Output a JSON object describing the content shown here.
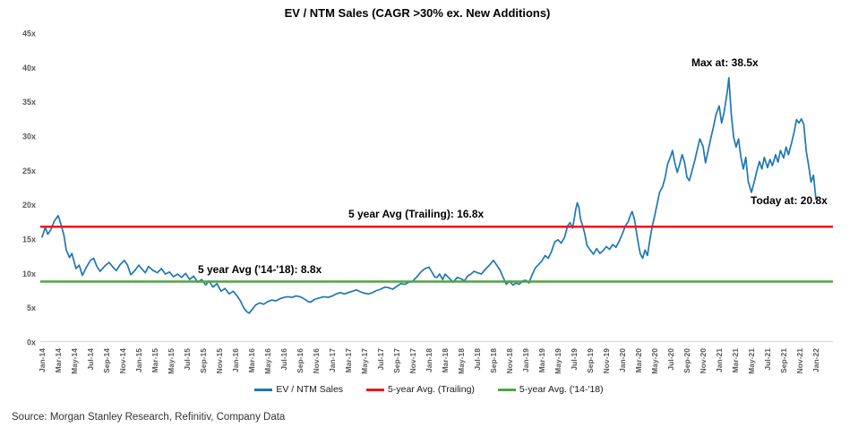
{
  "title": "EV / NTM Sales (CAGR >30% ex. New Additions)",
  "annotations": {
    "trailing_avg": "5 year Avg (Trailing): 16.8x",
    "early_avg": "5 year Avg ('14-'18): 8.8x",
    "max": "Max at: 38.5x",
    "today": "Today at: 20.8x"
  },
  "legend": [
    {
      "label": "EV / NTM Sales"
    },
    {
      "label": "5-year Avg. (Trailing)"
    },
    {
      "label": "5-year Avg. ('14-'18)"
    }
  ],
  "source": "Source: Morgan Stanley Research, Refinitiv, Company Data",
  "chart_data": {
    "type": "line",
    "title": "EV / NTM Sales (CAGR >30% ex. New Additions)",
    "y_axis": {
      "min": 0,
      "max": 45,
      "tick_step": 5,
      "ticks": [
        "0x",
        "5x",
        "10x",
        "15x",
        "20x",
        "25x",
        "30x",
        "35x",
        "40x",
        "45x"
      ],
      "grid": false
    },
    "x_axis": {
      "start": "Jan-14",
      "end": "Jan-22",
      "label_interval_months": 2,
      "labels": [
        "Jan-14",
        "Mar-14",
        "May-14",
        "Jul-14",
        "Sep-14",
        "Nov-14",
        "Jan-15",
        "Mar-15",
        "May-15",
        "Jul-15",
        "Sep-15",
        "Nov-15",
        "Jan-16",
        "Mar-16",
        "May-16",
        "Jul-16",
        "Sep-16",
        "Nov-16",
        "Jan-17",
        "Mar-17",
        "May-17",
        "Jul-17",
        "Sep-17",
        "Nov-17",
        "Jan-18",
        "Mar-18",
        "May-18",
        "Jul-18",
        "Sep-18",
        "Nov-18",
        "Jan-19",
        "Mar-19",
        "May-19",
        "Jul-19",
        "Sep-19",
        "Nov-19",
        "Jan-20",
        "Mar-20",
        "May-20",
        "Jul-20",
        "Sep-20",
        "Nov-20",
        "Jan-21",
        "Mar-21",
        "May-21",
        "Jul-21",
        "Sep-21",
        "Nov-21",
        "Jan-22"
      ]
    },
    "series": [
      {
        "name": "EV / NTM Sales",
        "kind": "line",
        "color": "#1f77b4",
        "max_value": 38.5,
        "max_at": "Feb-21",
        "last_value": 20.8,
        "last_at": "Jan-22",
        "points_format": "[months_since_Jan14, ev_ntm_sales_multiple]",
        "points": [
          [
            0,
            15.3
          ],
          [
            0.4,
            16.7
          ],
          [
            0.7,
            15.7
          ],
          [
            1.1,
            16.4
          ],
          [
            1.5,
            17.6
          ],
          [
            2,
            18.4
          ],
          [
            2.4,
            16.9
          ],
          [
            2.7,
            15.6
          ],
          [
            3,
            13.4
          ],
          [
            3.4,
            12.3
          ],
          [
            3.7,
            12.9
          ],
          [
            4.2,
            10.7
          ],
          [
            4.6,
            11.2
          ],
          [
            5,
            9.7
          ],
          [
            5.5,
            10.9
          ],
          [
            6,
            11.9
          ],
          [
            6.4,
            12.2
          ],
          [
            6.8,
            11.0
          ],
          [
            7.2,
            10.3
          ],
          [
            7.8,
            11.1
          ],
          [
            8.3,
            11.6
          ],
          [
            8.8,
            10.9
          ],
          [
            9.2,
            10.4
          ],
          [
            9.7,
            11.3
          ],
          [
            10.2,
            11.9
          ],
          [
            10.6,
            11.2
          ],
          [
            11,
            9.8
          ],
          [
            11.5,
            10.4
          ],
          [
            12,
            11.2
          ],
          [
            12.4,
            10.6
          ],
          [
            12.8,
            10.1
          ],
          [
            13.2,
            11.0
          ],
          [
            13.8,
            10.4
          ],
          [
            14.3,
            10.1
          ],
          [
            14.8,
            10.7
          ],
          [
            15.3,
            9.9
          ],
          [
            15.8,
            10.2
          ],
          [
            16.3,
            9.5
          ],
          [
            16.8,
            9.9
          ],
          [
            17.3,
            9.4
          ],
          [
            17.8,
            10.0
          ],
          [
            18.3,
            9.1
          ],
          [
            18.8,
            9.6
          ],
          [
            19.3,
            8.7
          ],
          [
            19.8,
            9.1
          ],
          [
            20.3,
            8.3
          ],
          [
            20.7,
            8.9
          ],
          [
            21.2,
            8.0
          ],
          [
            21.7,
            8.5
          ],
          [
            22.2,
            7.4
          ],
          [
            22.7,
            7.8
          ],
          [
            23.2,
            7.0
          ],
          [
            23.7,
            7.4
          ],
          [
            24.2,
            6.7
          ],
          [
            24.6,
            6.0
          ],
          [
            25,
            5.0
          ],
          [
            25.4,
            4.4
          ],
          [
            25.7,
            4.2
          ],
          [
            26.1,
            4.8
          ],
          [
            26.5,
            5.4
          ],
          [
            27,
            5.7
          ],
          [
            27.5,
            5.5
          ],
          [
            28,
            5.9
          ],
          [
            28.5,
            6.1
          ],
          [
            29,
            6.0
          ],
          [
            29.5,
            6.3
          ],
          [
            30,
            6.5
          ],
          [
            30.5,
            6.6
          ],
          [
            31,
            6.5
          ],
          [
            31.5,
            6.7
          ],
          [
            32,
            6.6
          ],
          [
            32.5,
            6.3
          ],
          [
            33,
            5.9
          ],
          [
            33.3,
            5.8
          ],
          [
            33.8,
            6.2
          ],
          [
            34.3,
            6.4
          ],
          [
            35,
            6.6
          ],
          [
            35.5,
            6.5
          ],
          [
            36,
            6.7
          ],
          [
            36.5,
            7.0
          ],
          [
            37,
            7.2
          ],
          [
            37.5,
            7.0
          ],
          [
            38,
            7.2
          ],
          [
            38.5,
            7.4
          ],
          [
            39,
            7.6
          ],
          [
            39.5,
            7.3
          ],
          [
            40,
            7.1
          ],
          [
            40.5,
            7.0
          ],
          [
            41,
            7.2
          ],
          [
            41.5,
            7.5
          ],
          [
            42,
            7.7
          ],
          [
            42.5,
            8.0
          ],
          [
            43,
            7.9
          ],
          [
            43.5,
            7.7
          ],
          [
            44,
            8.1
          ],
          [
            44.5,
            8.5
          ],
          [
            45,
            8.4
          ],
          [
            45.5,
            8.7
          ],
          [
            46,
            8.9
          ],
          [
            46.5,
            9.5
          ],
          [
            47,
            10.2
          ],
          [
            47.5,
            10.7
          ],
          [
            48,
            10.9
          ],
          [
            48.3,
            10.3
          ],
          [
            48.7,
            9.5
          ],
          [
            49,
            9.4
          ],
          [
            49.3,
            9.9
          ],
          [
            49.7,
            9.1
          ],
          [
            50,
            9.9
          ],
          [
            50.5,
            9.3
          ],
          [
            51,
            8.7
          ],
          [
            51.5,
            9.4
          ],
          [
            52,
            9.2
          ],
          [
            52.4,
            8.9
          ],
          [
            52.8,
            9.6
          ],
          [
            53.2,
            9.9
          ],
          [
            53.6,
            10.3
          ],
          [
            54,
            10.1
          ],
          [
            54.5,
            9.9
          ],
          [
            55,
            10.6
          ],
          [
            55.5,
            11.2
          ],
          [
            56,
            11.9
          ],
          [
            56.4,
            11.2
          ],
          [
            56.8,
            10.5
          ],
          [
            57.2,
            9.4
          ],
          [
            57.6,
            8.4
          ],
          [
            58,
            8.9
          ],
          [
            58.4,
            8.3
          ],
          [
            58.8,
            8.6
          ],
          [
            59.2,
            8.4
          ],
          [
            59.6,
            8.9
          ],
          [
            60,
            9.0
          ],
          [
            60.4,
            8.6
          ],
          [
            60.8,
            9.8
          ],
          [
            61.2,
            10.8
          ],
          [
            61.6,
            11.3
          ],
          [
            62,
            11.8
          ],
          [
            62.4,
            12.6
          ],
          [
            62.8,
            12.2
          ],
          [
            63.2,
            13.2
          ],
          [
            63.6,
            14.6
          ],
          [
            64,
            14.9
          ],
          [
            64.4,
            14.4
          ],
          [
            64.8,
            15.2
          ],
          [
            65.2,
            16.9
          ],
          [
            65.5,
            17.4
          ],
          [
            65.8,
            16.6
          ],
          [
            66,
            17.8
          ],
          [
            66.2,
            19.3
          ],
          [
            66.4,
            20.3
          ],
          [
            66.6,
            19.6
          ],
          [
            66.8,
            17.9
          ],
          [
            67,
            17.2
          ],
          [
            67.3,
            15.9
          ],
          [
            67.6,
            14.1
          ],
          [
            68,
            13.4
          ],
          [
            68.4,
            12.8
          ],
          [
            68.8,
            13.6
          ],
          [
            69.2,
            12.9
          ],
          [
            69.6,
            13.3
          ],
          [
            70,
            13.9
          ],
          [
            70.4,
            13.5
          ],
          [
            70.8,
            14.2
          ],
          [
            71.2,
            13.8
          ],
          [
            71.6,
            14.7
          ],
          [
            72,
            15.8
          ],
          [
            72.4,
            17.0
          ],
          [
            72.7,
            17.5
          ],
          [
            73,
            18.5
          ],
          [
            73.2,
            19.0
          ],
          [
            73.5,
            17.8
          ],
          [
            73.9,
            14.8
          ],
          [
            74.2,
            12.9
          ],
          [
            74.5,
            12.2
          ],
          [
            74.8,
            13.4
          ],
          [
            75.1,
            12.6
          ],
          [
            75.4,
            14.9
          ],
          [
            75.7,
            16.9
          ],
          [
            76,
            18.4
          ],
          [
            76.3,
            20.1
          ],
          [
            76.6,
            21.8
          ],
          [
            77,
            22.7
          ],
          [
            77.3,
            24.0
          ],
          [
            77.6,
            25.9
          ],
          [
            78,
            27.1
          ],
          [
            78.2,
            27.9
          ],
          [
            78.5,
            26.1
          ],
          [
            78.8,
            24.7
          ],
          [
            79.1,
            25.9
          ],
          [
            79.4,
            27.3
          ],
          [
            79.7,
            26.2
          ],
          [
            80,
            24.0
          ],
          [
            80.3,
            23.5
          ],
          [
            80.6,
            24.8
          ],
          [
            81,
            26.6
          ],
          [
            81.3,
            28.1
          ],
          [
            81.6,
            29.6
          ],
          [
            82,
            28.5
          ],
          [
            82.3,
            26.1
          ],
          [
            82.6,
            27.7
          ],
          [
            83,
            29.9
          ],
          [
            83.3,
            31.4
          ],
          [
            83.6,
            33.1
          ],
          [
            84,
            34.4
          ],
          [
            84.3,
            31.9
          ],
          [
            84.6,
            33.4
          ],
          [
            85,
            36.4
          ],
          [
            85.2,
            38.5
          ],
          [
            85.5,
            33.2
          ],
          [
            85.8,
            29.8
          ],
          [
            86.1,
            28.4
          ],
          [
            86.4,
            29.6
          ],
          [
            86.7,
            26.9
          ],
          [
            87,
            25.2
          ],
          [
            87.3,
            26.9
          ],
          [
            87.6,
            23.4
          ],
          [
            88,
            21.8
          ],
          [
            88.3,
            23.1
          ],
          [
            88.6,
            24.6
          ],
          [
            89,
            26.3
          ],
          [
            89.3,
            25.2
          ],
          [
            89.6,
            26.9
          ],
          [
            90,
            25.4
          ],
          [
            90.3,
            26.6
          ],
          [
            90.6,
            25.7
          ],
          [
            91,
            27.3
          ],
          [
            91.3,
            26.2
          ],
          [
            91.6,
            27.9
          ],
          [
            92,
            26.8
          ],
          [
            92.3,
            28.4
          ],
          [
            92.6,
            27.3
          ],
          [
            93,
            29.1
          ],
          [
            93.3,
            30.6
          ],
          [
            93.6,
            32.4
          ],
          [
            93.9,
            31.9
          ],
          [
            94.2,
            32.5
          ],
          [
            94.5,
            31.7
          ],
          [
            94.8,
            27.8
          ],
          [
            95.1,
            25.7
          ],
          [
            95.4,
            23.3
          ],
          [
            95.7,
            24.3
          ],
          [
            96,
            20.8
          ]
        ]
      },
      {
        "name": "5-year Avg. (Trailing)",
        "kind": "hline",
        "value": 16.8,
        "color": "#e8191d"
      },
      {
        "name": "5-year Avg. ('14-'18)",
        "kind": "hline",
        "value": 8.8,
        "color": "#52a447"
      }
    ],
    "legend_position": "bottom"
  }
}
